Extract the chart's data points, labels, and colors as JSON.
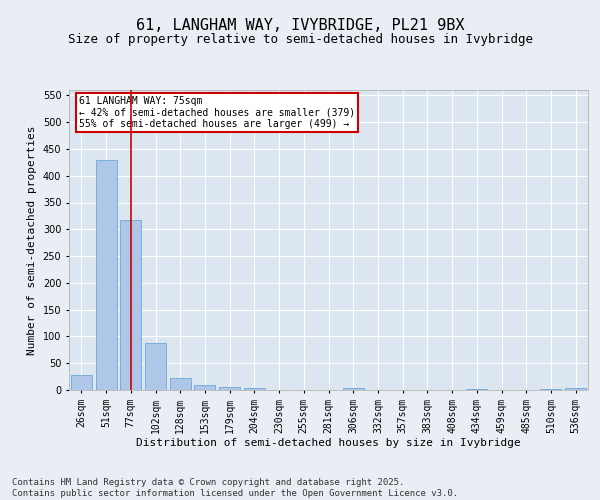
{
  "title": "61, LANGHAM WAY, IVYBRIDGE, PL21 9BX",
  "subtitle": "Size of property relative to semi-detached houses in Ivybridge",
  "xlabel": "Distribution of semi-detached houses by size in Ivybridge",
  "ylabel": "Number of semi-detached properties",
  "categories": [
    "26sqm",
    "51sqm",
    "77sqm",
    "102sqm",
    "128sqm",
    "153sqm",
    "179sqm",
    "204sqm",
    "230sqm",
    "255sqm",
    "281sqm",
    "306sqm",
    "332sqm",
    "357sqm",
    "383sqm",
    "408sqm",
    "434sqm",
    "459sqm",
    "485sqm",
    "510sqm",
    "536sqm"
  ],
  "values": [
    28,
    430,
    318,
    88,
    22,
    10,
    5,
    3,
    0,
    0,
    0,
    3,
    0,
    0,
    0,
    0,
    2,
    0,
    0,
    2,
    3
  ],
  "bar_color": "#aec6e8",
  "bar_edge_color": "#5a9fd4",
  "highlight_index": 2,
  "highlight_color": "#cc0000",
  "ylim": [
    0,
    560
  ],
  "yticks": [
    0,
    50,
    100,
    150,
    200,
    250,
    300,
    350,
    400,
    450,
    500,
    550
  ],
  "annotation_text": "61 LANGHAM WAY: 75sqm\n← 42% of semi-detached houses are smaller (379)\n55% of semi-detached houses are larger (499) →",
  "annotation_box_color": "#ffffff",
  "annotation_box_edge_color": "#cc0000",
  "footer_text": "Contains HM Land Registry data © Crown copyright and database right 2025.\nContains public sector information licensed under the Open Government Licence v3.0.",
  "background_color": "#e8eef4",
  "plot_background_color": "#dce6f0",
  "grid_color": "#ffffff",
  "title_fontsize": 11,
  "subtitle_fontsize": 9,
  "axis_label_fontsize": 8,
  "tick_fontsize": 7,
  "footer_fontsize": 6.5
}
